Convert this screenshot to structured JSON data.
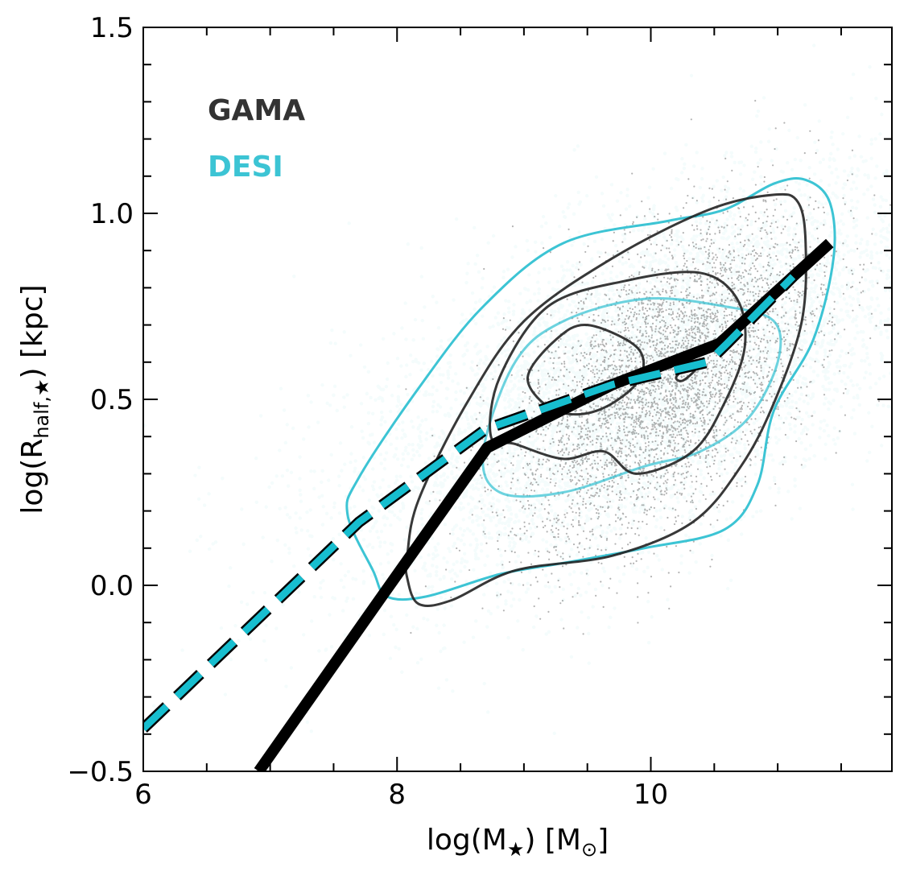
{
  "chart_data": {
    "type": "scatter",
    "title": "",
    "xlabel": {
      "main": "log(M",
      "sub": "★",
      "after": ") [M",
      "sub2": "⊙",
      "end": "]"
    },
    "ylabel": {
      "main": "log(R",
      "sub": "half,★",
      "end": ") [kpc]"
    },
    "xlim": [
      6,
      11.9
    ],
    "ylim": [
      -0.5,
      1.5
    ],
    "xticks": [
      6,
      8,
      10
    ],
    "xtick_labels": [
      "6",
      "8",
      "10"
    ],
    "yticks": [
      -0.5,
      0.0,
      0.5,
      1.0,
      1.5
    ],
    "ytick_labels": [
      "−0.5",
      "0.0",
      "0.5",
      "1.0",
      "1.5"
    ],
    "x_minor_step": 0.5,
    "y_minor_step": 0.1,
    "legend": {
      "placement": "top-left",
      "entries": [
        {
          "label": "GAMA",
          "color": "#333333"
        },
        {
          "label": "DESI",
          "color": "#3cc4d4"
        }
      ]
    },
    "colors": {
      "desi": "#3cc4d4",
      "desi_line": "#17becf",
      "gama": "#000000"
    },
    "scatter_clouds": [
      {
        "name": "DESI",
        "n": 9000,
        "mean": [
          9.9,
          0.55
        ],
        "sd": [
          1.15,
          0.27
        ],
        "corr": 0.62,
        "color": "#3cc4d4",
        "opacity": 0.06
      },
      {
        "name": "GAMA",
        "n": 4500,
        "mean": [
          10.1,
          0.55
        ],
        "sd": [
          0.6,
          0.22
        ],
        "corr": 0.55,
        "color": "#222222",
        "opacity": 0.35
      }
    ],
    "series": [
      {
        "name": "GAMA median relation",
        "style": "solid",
        "x": [
          6.91,
          7.9,
          8.71,
          9.7,
          10.54,
          11.41
        ],
        "y": [
          -0.5,
          -0.02,
          0.37,
          0.54,
          0.65,
          0.92
        ]
      },
      {
        "name": "DESI median relation",
        "style": "dashed",
        "x": [
          6.0,
          7.7,
          8.7,
          9.7,
          10.45,
          10.6,
          11.12
        ],
        "y": [
          -0.385,
          0.17,
          0.42,
          0.54,
          0.6,
          0.65,
          0.83
        ]
      }
    ],
    "contours": [
      {
        "name": "DESI outer",
        "color": "#3cc4d4",
        "opacity": 1,
        "x": [
          7.81,
          7.61,
          7.7,
          8.17,
          8.68,
          9.31,
          10.14,
          10.58,
          10.97,
          11.22,
          11.41,
          11.44,
          11.28,
          10.97,
          10.84,
          10.58,
          9.95,
          9.31,
          8.81,
          8.23,
          7.92
        ],
        "y": [
          0.04,
          0.19,
          0.29,
          0.53,
          0.75,
          0.92,
          0.98,
          1.01,
          1.08,
          1.09,
          1.03,
          0.88,
          0.66,
          0.47,
          0.27,
          0.15,
          0.1,
          0.06,
          0.03,
          -0.03,
          -0.03
        ]
      },
      {
        "name": "DESI middle",
        "color": "#3cc4d4",
        "opacity": 0.75,
        "x": [
          8.68,
          8.93,
          9.31,
          9.95,
          10.58,
          10.97,
          11.0,
          10.77,
          10.39,
          9.95,
          9.31,
          8.81
        ],
        "y": [
          0.36,
          0.6,
          0.71,
          0.77,
          0.75,
          0.71,
          0.6,
          0.45,
          0.36,
          0.32,
          0.25,
          0.25
        ]
      },
      {
        "name": "GAMA outer",
        "color": "#222222",
        "opacity": 0.9,
        "x": [
          8.08,
          8.17,
          8.55,
          9.0,
          9.7,
          10.46,
          10.97,
          11.16,
          11.22,
          11.19,
          10.97,
          10.71,
          10.33,
          9.7,
          8.93,
          8.43,
          8.17,
          8.08
        ],
        "y": [
          0.08,
          0.23,
          0.49,
          0.71,
          0.88,
          1.01,
          1.05,
          1.03,
          0.92,
          0.71,
          0.49,
          0.32,
          0.17,
          0.08,
          0.04,
          -0.04,
          -0.05,
          0.02
        ]
      },
      {
        "name": "GAMA middle",
        "color": "#222222",
        "opacity": 0.9,
        "x": [
          8.74,
          8.81,
          9.19,
          9.82,
          10.39,
          10.68,
          10.74,
          10.58,
          10.33,
          9.89,
          9.63,
          9.31,
          8.93
        ],
        "y": [
          0.4,
          0.56,
          0.75,
          0.82,
          0.84,
          0.77,
          0.64,
          0.49,
          0.36,
          0.3,
          0.36,
          0.34,
          0.38
        ]
      },
      {
        "name": "GAMA inner",
        "color": "#222222",
        "opacity": 0.9,
        "x": [
          9.03,
          9.25,
          9.5,
          9.89,
          9.92,
          9.7,
          9.44,
          9.19
        ],
        "y": [
          0.56,
          0.66,
          0.7,
          0.64,
          0.56,
          0.49,
          0.46,
          0.48
        ]
      },
      {
        "name": "GAMA peak",
        "color": "#222222",
        "opacity": 0.9,
        "x": [
          10.2,
          10.3,
          10.35,
          10.25
        ],
        "y": [
          0.56,
          0.59,
          0.58,
          0.55
        ]
      }
    ]
  }
}
